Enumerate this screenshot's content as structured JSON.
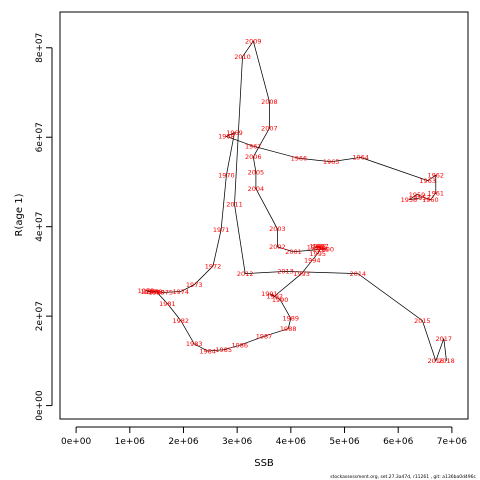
{
  "chart_data": {
    "type": "line",
    "xlabel": "SSB",
    "ylabel": "R(age 1)",
    "xlim": [
      -300000,
      7300000
    ],
    "ylim": [
      -3000000,
      88000000
    ],
    "xticks": [
      {
        "value": 0,
        "label": "0e+00"
      },
      {
        "value": 1000000,
        "label": "1e+06"
      },
      {
        "value": 2000000,
        "label": "2e+06"
      },
      {
        "value": 3000000,
        "label": "3e+06"
      },
      {
        "value": 4000000,
        "label": "4e+06"
      },
      {
        "value": 5000000,
        "label": "5e+06"
      },
      {
        "value": 6000000,
        "label": "6e+06"
      },
      {
        "value": 7000000,
        "label": "7e+06"
      }
    ],
    "yticks": [
      {
        "value": 0,
        "label": "0e+00"
      },
      {
        "value": 20000000,
        "label": "2e+07"
      },
      {
        "value": 40000000,
        "label": "4e+07"
      },
      {
        "value": 60000000,
        "label": "6e+07"
      },
      {
        "value": 80000000,
        "label": "8e+07"
      }
    ],
    "grid": false,
    "line_color": "#000000",
    "label_color": "#ff0000",
    "footer": "stockassessment.org, set.27.3a47d, r11261 , git: a136ba0d496c",
    "points": [
      {
        "year": "1957",
        "x": 6450000,
        "y": 46500000
      },
      {
        "year": "1958",
        "x": 6200000,
        "y": 46000000
      },
      {
        "year": "1959",
        "x": 6350000,
        "y": 47200000
      },
      {
        "year": "1960",
        "x": 6600000,
        "y": 46000000
      },
      {
        "year": "1961",
        "x": 6700000,
        "y": 47500000
      },
      {
        "year": "1962",
        "x": 6700000,
        "y": 51500000
      },
      {
        "year": "1963",
        "x": 6550000,
        "y": 50300000
      },
      {
        "year": "1964",
        "x": 5300000,
        "y": 55500000
      },
      {
        "year": "1965",
        "x": 4750000,
        "y": 54500000
      },
      {
        "year": "1966",
        "x": 4150000,
        "y": 55300000
      },
      {
        "year": "1967",
        "x": 3300000,
        "y": 58000000
      },
      {
        "year": "1968",
        "x": 2800000,
        "y": 60200000
      },
      {
        "year": "1969",
        "x": 2950000,
        "y": 61000000
      },
      {
        "year": "1970",
        "x": 2800000,
        "y": 51500000
      },
      {
        "year": "1971",
        "x": 2700000,
        "y": 39300000
      },
      {
        "year": "1972",
        "x": 2550000,
        "y": 31200000
      },
      {
        "year": "1973",
        "x": 2200000,
        "y": 27000000
      },
      {
        "year": "1974",
        "x": 1950000,
        "y": 25500000
      },
      {
        "year": "1975",
        "x": 1650000,
        "y": 25300000
      },
      {
        "year": "1976",
        "x": 1450000,
        "y": 25500000
      },
      {
        "year": "1977",
        "x": 1350000,
        "y": 25500000
      },
      {
        "year": "1978",
        "x": 1300000,
        "y": 25700000
      },
      {
        "year": "1979",
        "x": 1400000,
        "y": 25500000
      },
      {
        "year": "1980",
        "x": 1500000,
        "y": 25400000
      },
      {
        "year": "1981",
        "x": 1700000,
        "y": 22800000
      },
      {
        "year": "1982",
        "x": 1950000,
        "y": 19000000
      },
      {
        "year": "1983",
        "x": 2200000,
        "y": 13800000
      },
      {
        "year": "1984",
        "x": 2450000,
        "y": 12200000
      },
      {
        "year": "1985",
        "x": 2750000,
        "y": 12500000
      },
      {
        "year": "1986",
        "x": 3050000,
        "y": 13500000
      },
      {
        "year": "1987",
        "x": 3500000,
        "y": 15500000
      },
      {
        "year": "1988",
        "x": 3950000,
        "y": 17200000
      },
      {
        "year": "1989",
        "x": 4000000,
        "y": 19500000
      },
      {
        "year": "1990",
        "x": 3800000,
        "y": 23700000
      },
      {
        "year": "1991",
        "x": 3600000,
        "y": 25000000
      },
      {
        "year": "1992",
        "x": 3700000,
        "y": 24500000
      },
      {
        "year": "1993",
        "x": 4200000,
        "y": 29500000
      },
      {
        "year": "1994",
        "x": 4400000,
        "y": 32500000
      },
      {
        "year": "1995",
        "x": 4500000,
        "y": 34000000
      },
      {
        "year": "1996",
        "x": 4550000,
        "y": 35000000
      },
      {
        "year": "1997",
        "x": 4550000,
        "y": 35600000
      },
      {
        "year": "1998",
        "x": 4500000,
        "y": 35600000
      },
      {
        "year": "1999",
        "x": 4450000,
        "y": 35400000
      },
      {
        "year": "2000",
        "x": 4650000,
        "y": 35000000
      },
      {
        "year": "2001",
        "x": 4050000,
        "y": 34400000
      },
      {
        "year": "2002",
        "x": 3750000,
        "y": 35500000
      },
      {
        "year": "2003",
        "x": 3750000,
        "y": 39500000
      },
      {
        "year": "2004",
        "x": 3350000,
        "y": 48500000
      },
      {
        "year": "2005",
        "x": 3350000,
        "y": 52200000
      },
      {
        "year": "2006",
        "x": 3300000,
        "y": 55600000
      },
      {
        "year": "2007",
        "x": 3600000,
        "y": 62000000
      },
      {
        "year": "2008",
        "x": 3600000,
        "y": 68000000
      },
      {
        "year": "2009",
        "x": 3300000,
        "y": 81500000
      },
      {
        "year": "2010",
        "x": 3100000,
        "y": 78000000
      },
      {
        "year": "2011",
        "x": 2950000,
        "y": 45000000
      },
      {
        "year": "2012",
        "x": 3150000,
        "y": 29500000
      },
      {
        "year": "2013",
        "x": 3900000,
        "y": 30000000
      },
      {
        "year": "2014",
        "x": 5250000,
        "y": 29500000
      },
      {
        "year": "2015",
        "x": 6450000,
        "y": 19000000
      },
      {
        "year": "2016",
        "x": 6700000,
        "y": 10000000
      },
      {
        "year": "2017",
        "x": 6850000,
        "y": 15000000
      },
      {
        "year": "2018",
        "x": 6900000,
        "y": 10000000
      }
    ]
  }
}
